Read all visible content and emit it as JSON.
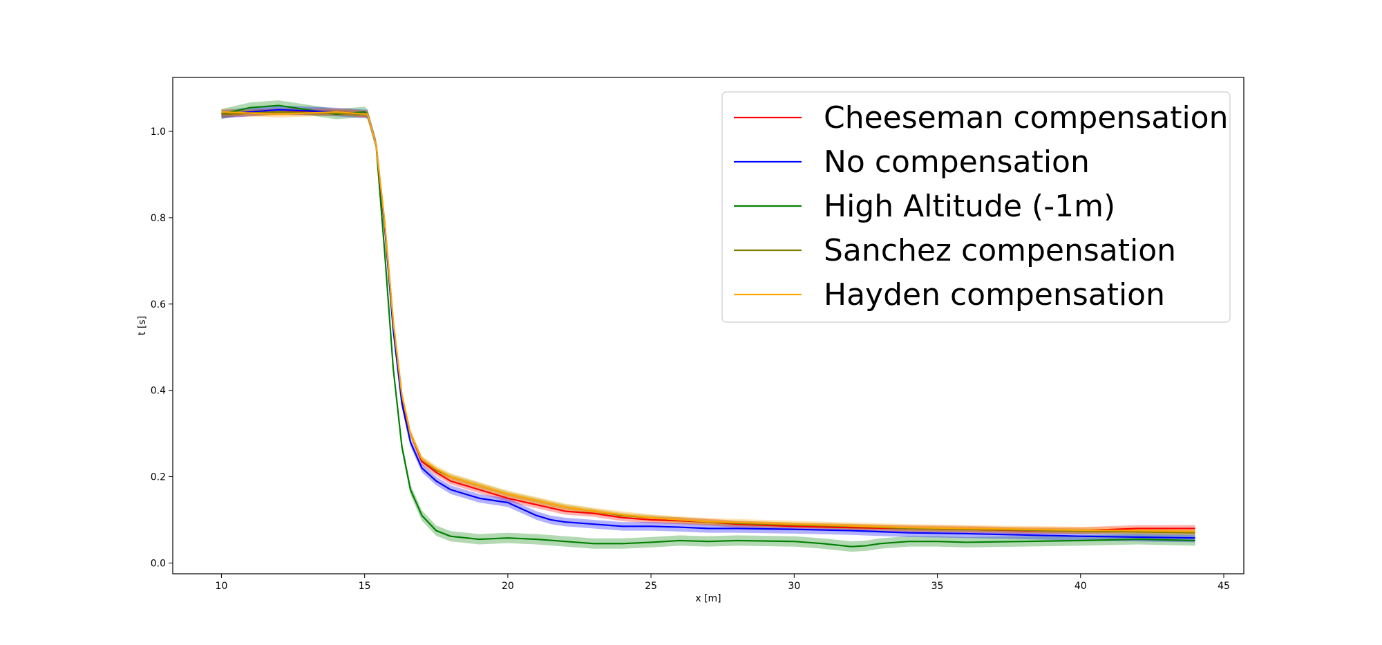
{
  "chart_data": {
    "type": "line",
    "title": "",
    "xlabel": "x [m]",
    "ylabel": "t [s]",
    "xlim": [
      8.3,
      45.7
    ],
    "ylim": [
      -0.025,
      1.125
    ],
    "xticks": [
      10,
      15,
      20,
      25,
      30,
      35,
      40,
      45
    ],
    "yticks": [
      0.0,
      0.2,
      0.4,
      0.6,
      0.8,
      1.0
    ],
    "xtick_labels": [
      "10",
      "15",
      "20",
      "25",
      "30",
      "35",
      "40",
      "45"
    ],
    "ytick_labels": [
      "0.0",
      "0.2",
      "0.4",
      "0.6",
      "0.8",
      "1.0"
    ],
    "grid": false,
    "legend_position": "top-right",
    "series": [
      {
        "name": "Cheeseman compensation",
        "color": "#ff0000",
        "x": [
          10,
          12,
          14,
          15.1,
          15.4,
          15.7,
          16,
          16.3,
          16.6,
          17,
          17.5,
          18,
          19,
          20,
          21,
          22,
          23,
          24,
          25,
          26,
          27,
          28,
          30,
          32,
          34,
          36,
          38,
          40,
          42,
          44
        ],
        "y": [
          1.04,
          1.045,
          1.045,
          1.04,
          0.97,
          0.78,
          0.55,
          0.38,
          0.3,
          0.235,
          0.21,
          0.19,
          0.17,
          0.15,
          0.135,
          0.12,
          0.115,
          0.105,
          0.1,
          0.098,
          0.095,
          0.09,
          0.085,
          0.082,
          0.08,
          0.078,
          0.075,
          0.075,
          0.08,
          0.08
        ],
        "band": 0.008
      },
      {
        "name": "No compensation",
        "color": "#0000ff",
        "x": [
          10,
          12,
          14,
          15.1,
          15.4,
          15.7,
          16,
          16.3,
          16.6,
          17,
          17.5,
          18,
          19,
          20,
          20.5,
          21,
          21.5,
          22,
          23,
          24,
          25,
          26,
          27,
          28,
          30,
          32,
          34,
          36,
          38,
          40,
          42,
          44
        ],
        "y": [
          1.04,
          1.05,
          1.045,
          1.04,
          0.97,
          0.78,
          0.54,
          0.37,
          0.28,
          0.22,
          0.19,
          0.17,
          0.15,
          0.14,
          0.125,
          0.11,
          0.1,
          0.095,
          0.09,
          0.085,
          0.085,
          0.083,
          0.08,
          0.08,
          0.078,
          0.075,
          0.07,
          0.068,
          0.065,
          0.062,
          0.06,
          0.058
        ],
        "band": 0.01
      },
      {
        "name": "High Altitude (-1m)",
        "color": "#008000",
        "x": [
          10,
          11,
          12,
          13,
          14,
          15,
          15.1,
          15.4,
          15.7,
          16,
          16.3,
          16.6,
          17,
          17.5,
          18,
          19,
          20,
          21,
          22,
          23,
          24,
          25,
          26,
          27,
          28,
          30,
          31,
          32,
          32.5,
          33,
          34,
          35,
          36,
          38,
          40,
          42,
          44
        ],
        "y": [
          1.04,
          1.055,
          1.06,
          1.05,
          1.04,
          1.045,
          1.04,
          0.97,
          0.72,
          0.45,
          0.27,
          0.17,
          0.11,
          0.075,
          0.062,
          0.055,
          0.058,
          0.055,
          0.05,
          0.045,
          0.045,
          0.048,
          0.052,
          0.05,
          0.052,
          0.05,
          0.045,
          0.038,
          0.04,
          0.045,
          0.05,
          0.05,
          0.048,
          0.05,
          0.052,
          0.055,
          0.052
        ],
        "band": 0.012
      },
      {
        "name": "Sanchez compensation",
        "color": "#808000",
        "x": [
          10,
          12,
          14,
          15.1,
          15.4,
          15.7,
          16,
          16.3,
          16.6,
          17,
          17.5,
          18,
          19,
          20,
          21,
          22,
          23,
          24,
          25,
          26,
          27,
          28,
          30,
          32,
          34,
          36,
          38,
          40,
          42,
          44
        ],
        "y": [
          1.04,
          1.045,
          1.042,
          1.04,
          0.97,
          0.79,
          0.56,
          0.39,
          0.3,
          0.24,
          0.215,
          0.2,
          0.18,
          0.16,
          0.145,
          0.13,
          0.12,
          0.11,
          0.105,
          0.1,
          0.095,
          0.092,
          0.088,
          0.085,
          0.08,
          0.078,
          0.076,
          0.074,
          0.072,
          0.07
        ],
        "band": 0.006
      },
      {
        "name": "Hayden compensation",
        "color": "#ffa500",
        "x": [
          10,
          12,
          14,
          15.1,
          15.4,
          15.7,
          16,
          16.3,
          16.6,
          17,
          17.5,
          18,
          19,
          20,
          21,
          22,
          23,
          24,
          25,
          26,
          27,
          28,
          30,
          32,
          34,
          36,
          38,
          40,
          42,
          44
        ],
        "y": [
          1.045,
          1.04,
          1.045,
          1.04,
          0.97,
          0.79,
          0.56,
          0.39,
          0.3,
          0.24,
          0.218,
          0.2,
          0.18,
          0.16,
          0.145,
          0.13,
          0.12,
          0.112,
          0.105,
          0.1,
          0.096,
          0.094,
          0.09,
          0.086,
          0.082,
          0.08,
          0.078,
          0.076,
          0.075,
          0.073
        ],
        "band": 0.008
      }
    ]
  }
}
